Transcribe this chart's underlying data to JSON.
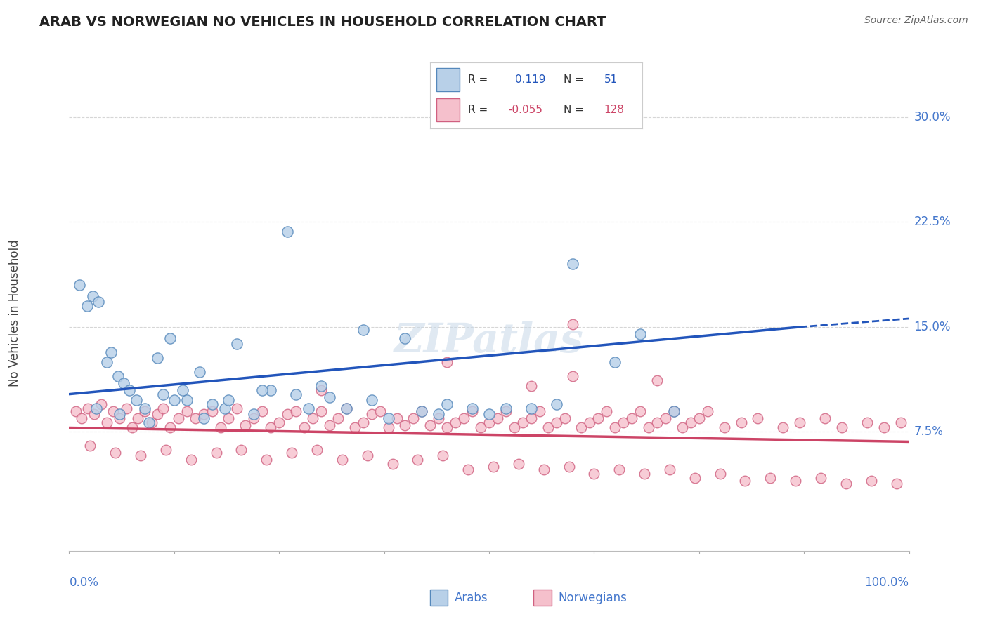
{
  "title": "ARAB VS NORWEGIAN NO VEHICLES IN HOUSEHOLD CORRELATION CHART",
  "source": "Source: ZipAtlas.com",
  "ylabel": "No Vehicles in Household",
  "xlim": [
    0.0,
    100.0
  ],
  "ylim": [
    -1.0,
    33.0
  ],
  "arab_R": 0.119,
  "arab_N": 51,
  "norw_R": -0.055,
  "norw_N": 128,
  "arab_fill_color": "#b8d0e8",
  "arab_edge_color": "#5588bb",
  "norw_fill_color": "#f5c0cc",
  "norw_edge_color": "#d06080",
  "arab_line_color": "#2255bb",
  "norw_line_color": "#cc4466",
  "title_color": "#222222",
  "axis_label_color": "#4477cc",
  "grid_color": "#cccccc",
  "source_color": "#666666",
  "background_color": "#ffffff",
  "watermark_text": "ZIPatlas",
  "watermark_color": "#c8d8e8",
  "ytick_positions": [
    7.5,
    15.0,
    22.5,
    30.0
  ],
  "ytick_labels": [
    "7.5%",
    "15.0%",
    "22.5%",
    "30.0%"
  ],
  "arab_x": [
    1.2,
    2.1,
    2.8,
    3.5,
    4.5,
    5.0,
    5.8,
    6.5,
    7.2,
    8.0,
    9.0,
    10.5,
    11.2,
    12.0,
    13.5,
    14.0,
    15.5,
    17.0,
    18.5,
    20.0,
    22.0,
    24.0,
    26.0,
    28.5,
    30.0,
    33.0,
    35.0,
    38.0,
    40.0,
    42.0,
    45.0,
    48.0,
    50.0,
    55.0,
    60.0,
    65.0,
    68.0,
    72.0,
    3.2,
    6.0,
    9.5,
    12.5,
    16.0,
    19.0,
    23.0,
    27.0,
    31.0,
    36.0,
    44.0,
    52.0,
    58.0
  ],
  "arab_y": [
    18.0,
    16.5,
    17.2,
    16.8,
    12.5,
    13.2,
    11.5,
    11.0,
    10.5,
    9.8,
    9.2,
    12.8,
    10.2,
    14.2,
    10.5,
    9.8,
    11.8,
    9.5,
    9.2,
    13.8,
    8.8,
    10.5,
    21.8,
    9.2,
    10.8,
    9.2,
    14.8,
    8.5,
    14.2,
    9.0,
    9.5,
    9.2,
    8.8,
    9.2,
    19.5,
    12.5,
    14.5,
    9.0,
    9.2,
    8.8,
    8.2,
    9.8,
    8.5,
    9.8,
    10.5,
    10.2,
    10.0,
    9.8,
    8.8,
    9.2,
    9.5
  ],
  "norw_x": [
    0.8,
    1.5,
    2.2,
    3.0,
    3.8,
    4.5,
    5.2,
    6.0,
    6.8,
    7.5,
    8.2,
    9.0,
    9.8,
    10.5,
    11.2,
    12.0,
    13.0,
    14.0,
    15.0,
    16.0,
    17.0,
    18.0,
    19.0,
    20.0,
    21.0,
    22.0,
    23.0,
    24.0,
    25.0,
    26.0,
    27.0,
    28.0,
    29.0,
    30.0,
    31.0,
    32.0,
    33.0,
    34.0,
    35.0,
    36.0,
    37.0,
    38.0,
    39.0,
    40.0,
    41.0,
    42.0,
    43.0,
    44.0,
    45.0,
    46.0,
    47.0,
    48.0,
    49.0,
    50.0,
    51.0,
    52.0,
    53.0,
    54.0,
    55.0,
    56.0,
    57.0,
    58.0,
    59.0,
    60.0,
    61.0,
    62.0,
    63.0,
    64.0,
    65.0,
    66.0,
    67.0,
    68.0,
    69.0,
    70.0,
    71.0,
    72.0,
    73.0,
    74.0,
    75.0,
    76.0,
    78.0,
    80.0,
    82.0,
    85.0,
    87.0,
    90.0,
    92.0,
    95.0,
    97.0,
    99.0,
    2.5,
    5.5,
    8.5,
    11.5,
    14.5,
    17.5,
    20.5,
    23.5,
    26.5,
    29.5,
    32.5,
    35.5,
    38.5,
    41.5,
    44.5,
    47.5,
    50.5,
    53.5,
    56.5,
    59.5,
    62.5,
    65.5,
    68.5,
    71.5,
    74.5,
    77.5,
    80.5,
    83.5,
    86.5,
    89.5,
    92.5,
    95.5,
    98.5,
    30.0,
    60.0,
    45.0,
    55.0,
    70.0
  ],
  "norw_y": [
    9.0,
    8.5,
    9.2,
    8.8,
    9.5,
    8.2,
    9.0,
    8.5,
    9.2,
    7.8,
    8.5,
    9.0,
    8.2,
    8.8,
    9.2,
    7.8,
    8.5,
    9.0,
    8.5,
    8.8,
    9.0,
    7.8,
    8.5,
    9.2,
    8.0,
    8.5,
    9.0,
    7.8,
    8.2,
    8.8,
    9.0,
    7.8,
    8.5,
    9.0,
    8.0,
    8.5,
    9.2,
    7.8,
    8.2,
    8.8,
    9.0,
    7.8,
    8.5,
    8.0,
    8.5,
    9.0,
    8.0,
    8.5,
    7.8,
    8.2,
    8.5,
    9.0,
    7.8,
    8.2,
    8.5,
    9.0,
    7.8,
    8.2,
    8.5,
    9.0,
    7.8,
    8.2,
    8.5,
    15.2,
    7.8,
    8.2,
    8.5,
    9.0,
    7.8,
    8.2,
    8.5,
    9.0,
    7.8,
    8.2,
    8.5,
    9.0,
    7.8,
    8.2,
    8.5,
    9.0,
    7.8,
    8.2,
    8.5,
    7.8,
    8.2,
    8.5,
    7.8,
    8.2,
    7.8,
    8.2,
    6.5,
    6.0,
    5.8,
    6.2,
    5.5,
    6.0,
    6.2,
    5.5,
    6.0,
    6.2,
    5.5,
    5.8,
    5.2,
    5.5,
    5.8,
    4.8,
    5.0,
    5.2,
    4.8,
    5.0,
    4.5,
    4.8,
    4.5,
    4.8,
    4.2,
    4.5,
    4.0,
    4.2,
    4.0,
    4.2,
    3.8,
    4.0,
    3.8,
    10.5,
    11.5,
    12.5,
    10.8,
    11.2
  ]
}
